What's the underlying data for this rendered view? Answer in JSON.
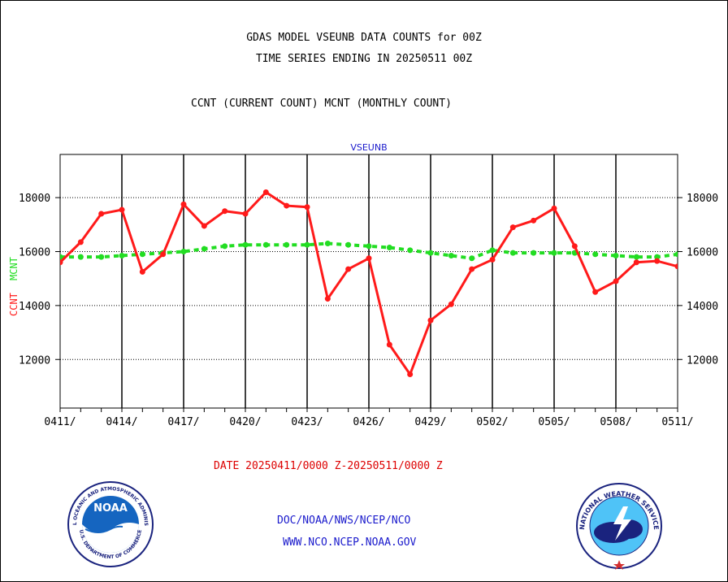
{
  "header": {
    "title1": "GDAS MODEL VSEUNB DATA COUNTS for 00Z",
    "title2": "TIME SERIES ENDING IN 20250511 00Z",
    "subtitle": "CCNT (CURRENT COUNT) MCNT (MONTHLY COUNT)"
  },
  "footer": {
    "date_range": "DATE 20250411/0000 Z-20250511/0000 Z",
    "org": "DOC/NOAA/NWS/NCEP/NCO",
    "url": "WWW.NCO.NCEP.NOAA.GOV"
  },
  "logos": {
    "noaa_center": "NOAA",
    "noaa_ring": "NATIONAL OCEANIC AND ATMOSPHERIC ADMINISTRATION",
    "noaa_ring_bottom": "U.S. DEPARTMENT OF COMMERCE",
    "nws_ring": "NATIONAL WEATHER SERVICE"
  },
  "colors": {
    "ccnt": "#ff1a1a",
    "mcnt": "#22dd22",
    "date": "#dd0000",
    "blue": "#1a1acc"
  },
  "chart_data": {
    "type": "line",
    "title": "VSEUNB",
    "ylabel_ccnt": "CCNT",
    "ylabel_mcnt": "MCNT",
    "ylim": [
      10200,
      19600
    ],
    "yticks": [
      12000,
      14000,
      16000,
      18000
    ],
    "ytick_labels": [
      "12000",
      "14000",
      "16000",
      "18000"
    ],
    "xtick_labels": [
      "0411/",
      "0414/",
      "0417/",
      "0420/",
      "0423/",
      "0426/",
      "0429/",
      "0502/",
      "0505/",
      "0508/",
      "0511/"
    ],
    "x_start_day": 0,
    "x_end_day": 30,
    "grid": true,
    "series": [
      {
        "name": "CCNT",
        "values": [
          15600,
          16350,
          17400,
          17550,
          15250,
          15900,
          17750,
          16950,
          17500,
          17400,
          18200,
          17700,
          17650,
          14250,
          15350,
          15750,
          12550,
          11450,
          13450,
          14050,
          15350,
          15700,
          16900,
          17150,
          17600,
          16200,
          14500,
          14900,
          15600,
          15650,
          15450
        ]
      },
      {
        "name": "MCNT",
        "values": [
          15800,
          15800,
          15800,
          15850,
          15900,
          15950,
          16000,
          16100,
          16200,
          16250,
          16250,
          16250,
          16250,
          16300,
          16250,
          16200,
          16150,
          16050,
          15950,
          15850,
          15750,
          16050,
          15950,
          15950,
          15950,
          15950,
          15900,
          15850,
          15800,
          15800,
          15900
        ]
      }
    ]
  }
}
